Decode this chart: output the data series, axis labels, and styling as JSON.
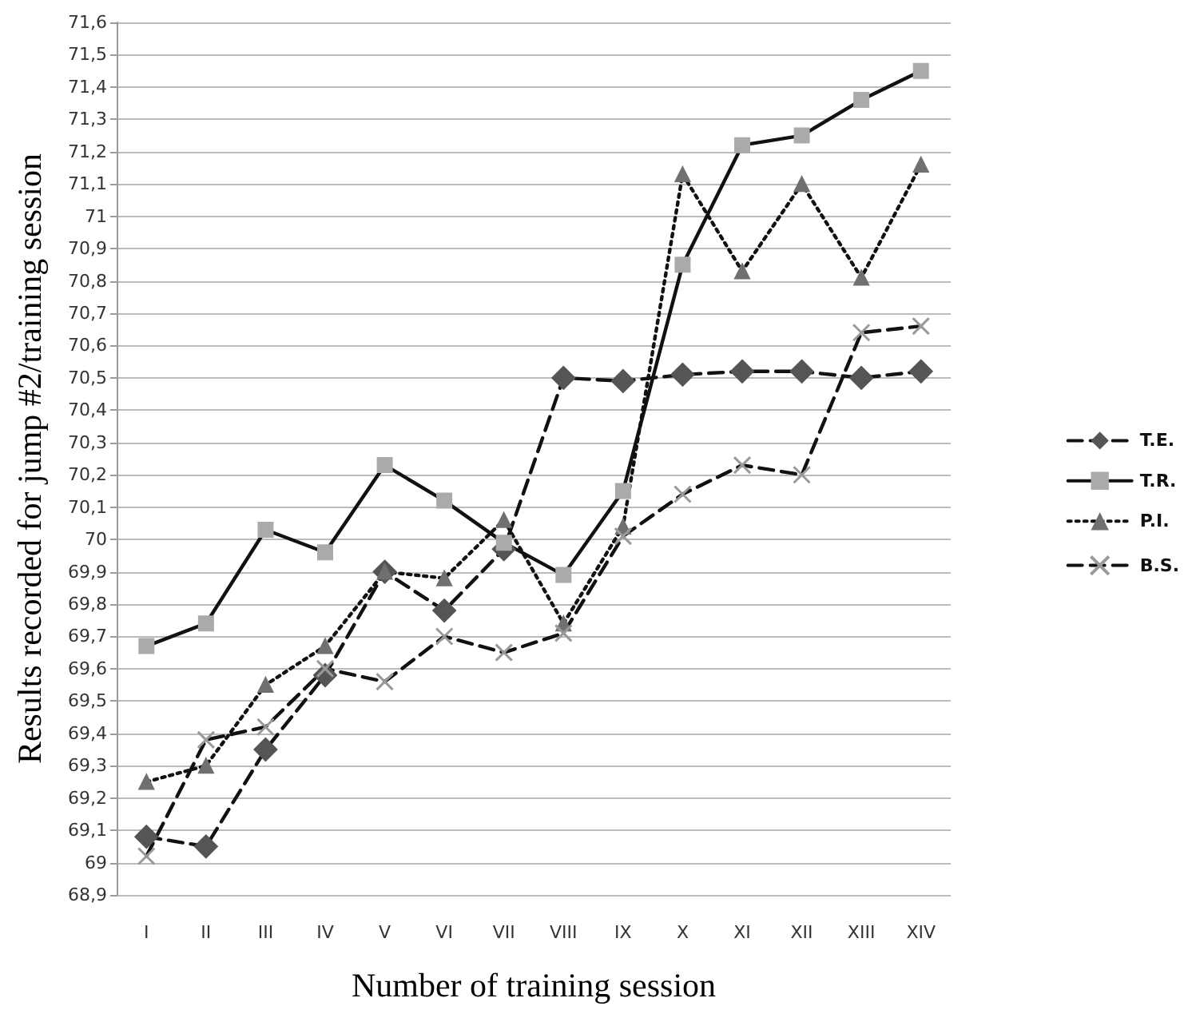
{
  "chart_data": {
    "type": "line",
    "xlabel": "Number of training session",
    "ylabel": "Results recorded for jump #2/training session",
    "categories": [
      "I",
      "II",
      "III",
      "IV",
      "V",
      "VI",
      "VII",
      "VIII",
      "IX",
      "X",
      "XI",
      "XII",
      "XIII",
      "XIV"
    ],
    "series": [
      {
        "name": "T.E.",
        "color": "#555555",
        "marker": "diamond",
        "line_style": "dashed",
        "values": [
          69.08,
          69.05,
          69.35,
          69.58,
          69.9,
          69.78,
          69.97,
          70.5,
          70.49,
          70.51,
          70.52,
          70.52,
          70.5,
          70.52
        ]
      },
      {
        "name": "T.R.",
        "color": "#aaaaaa",
        "marker": "square",
        "line_style": "solid",
        "values": [
          69.67,
          69.74,
          70.03,
          69.96,
          70.23,
          70.12,
          69.99,
          69.89,
          70.15,
          70.85,
          71.22,
          71.25,
          71.36,
          71.45
        ]
      },
      {
        "name": "P.I.",
        "color": "#707070",
        "marker": "triangle",
        "line_style": "dotted",
        "values": [
          69.25,
          69.3,
          69.55,
          69.67,
          69.9,
          69.88,
          70.06,
          69.74,
          70.04,
          71.13,
          70.83,
          71.1,
          70.81,
          71.16
        ]
      },
      {
        "name": "B.S.",
        "color": "#999999",
        "marker": "cross",
        "line_style": "dashed",
        "values": [
          69.02,
          69.38,
          69.42,
          69.6,
          69.56,
          69.7,
          69.65,
          69.71,
          70.01,
          70.14,
          70.23,
          70.2,
          70.64,
          70.66
        ]
      }
    ],
    "ylim": [
      68.9,
      71.6
    ],
    "yticks": [
      {
        "value": 68.9,
        "label": "68,9"
      },
      69,
      {
        "value": 69.1,
        "label": "69,1"
      },
      {
        "value": 69.2,
        "label": "69,2"
      },
      {
        "value": 69.3,
        "label": "69,3"
      },
      {
        "value": 69.4,
        "label": "69,4"
      },
      {
        "value": 69.5,
        "label": "69,5"
      },
      {
        "value": 69.6,
        "label": "69,6"
      },
      {
        "value": 69.7,
        "label": "69,7"
      },
      {
        "value": 69.8,
        "label": "69,8"
      },
      {
        "value": 69.9,
        "label": "69,9"
      },
      70,
      {
        "value": 70.1,
        "label": "70,1"
      },
      {
        "value": 70.2,
        "label": "70,2"
      },
      {
        "value": 70.3,
        "label": "70,3"
      },
      {
        "value": 70.4,
        "label": "70,4"
      },
      {
        "value": 70.5,
        "label": "70,5"
      },
      {
        "value": 70.6,
        "label": "70,6"
      },
      {
        "value": 70.7,
        "label": "70,7"
      },
      {
        "value": 70.8,
        "label": "70,8"
      },
      {
        "value": 70.9,
        "label": "70,9"
      },
      71,
      {
        "value": 71.1,
        "label": "71,1"
      },
      {
        "value": 71.2,
        "label": "71,2"
      },
      {
        "value": 71.3,
        "label": "71,3"
      },
      {
        "value": 71.4,
        "label": "71,4"
      },
      {
        "value": 71.5,
        "label": "71,5"
      },
      {
        "value": 71.6,
        "label": "71,6"
      }
    ],
    "grid": "y",
    "legend": "right"
  }
}
